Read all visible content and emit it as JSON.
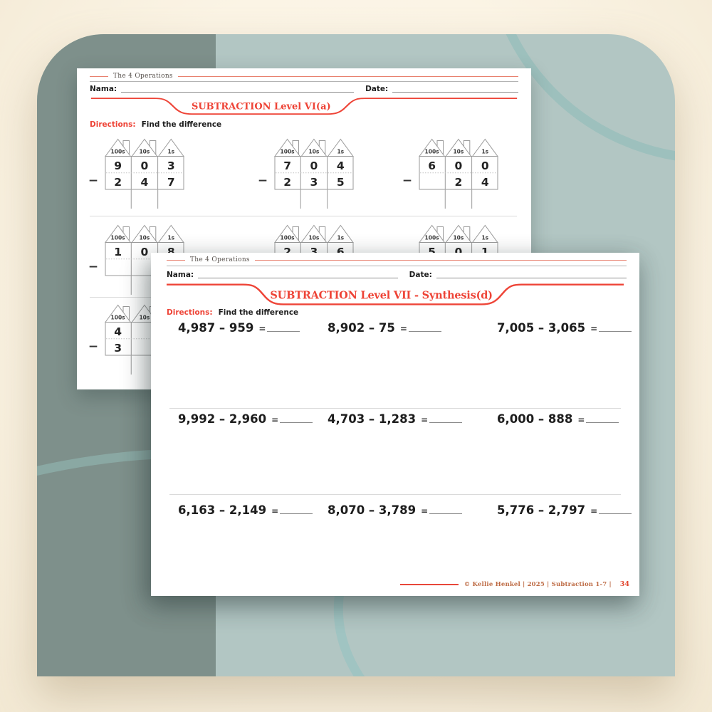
{
  "colors": {
    "background_cream": "#fbf4e5",
    "card_left_strip": "#7e908b",
    "card_right": "#b2c6c3",
    "circle_on_light": "#9dc0bd",
    "arc_on_dark": "#8aa8a3",
    "accent_red": "#ee4437",
    "footer_brown": "#bd6a43",
    "page_white": "#ffffff"
  },
  "back_page": {
    "collection": "The 4 Operations",
    "name_label": "Nama:",
    "date_label": "Date:",
    "title": "SUBTRACTION Level VI(a)",
    "directions_label": "Directions:",
    "directions_text": "Find the difference",
    "place_value_headers": [
      "100s",
      "10s",
      "1s"
    ],
    "minus": "−",
    "rows": [
      {
        "problems": [
          {
            "top": [
              "9",
              "0",
              "3"
            ],
            "bottom": [
              "2",
              "4",
              "7"
            ]
          },
          {
            "top": [
              "7",
              "0",
              "4"
            ],
            "bottom": [
              "2",
              "3",
              "5"
            ]
          },
          {
            "top": [
              "6",
              "0",
              "0"
            ],
            "bottom": [
              "",
              "2",
              "4"
            ]
          }
        ]
      },
      {
        "problems": [
          {
            "top": [
              "1",
              "0",
              "8"
            ],
            "bottom": [
              "",
              "",
              ""
            ]
          },
          {
            "top": [
              "2",
              "3",
              "6"
            ],
            "bottom": [
              "",
              "",
              ""
            ]
          },
          {
            "top": [
              "5",
              "0",
              "1"
            ],
            "bottom": [
              "",
              "",
              ""
            ]
          }
        ]
      },
      {
        "problems": [
          {
            "top": [
              "4",
              "",
              ""
            ],
            "bottom": [
              "3",
              "",
              ""
            ]
          }
        ]
      }
    ]
  },
  "front_page": {
    "collection": "The 4 Operations",
    "name_label": "Nama:",
    "date_label": "Date:",
    "title": "SUBTRACTION Level VII - Synthesis(d)",
    "directions_label": "Directions:",
    "directions_text": "Find the difference",
    "equals": "=",
    "problem_rows": [
      [
        "4,987 – 959",
        "8,902 – 75",
        "7,005 – 3,065"
      ],
      [
        "9,992 – 2,960",
        "4,703 – 1,283",
        "6,000 – 888"
      ],
      [
        "6,163 – 2,149",
        "8,070 – 3,789",
        "5,776 – 2,797"
      ]
    ],
    "footer_credit": "© Kellie Henkel | 2025 | Subtraction 1-7 |",
    "footer_page": "34"
  }
}
